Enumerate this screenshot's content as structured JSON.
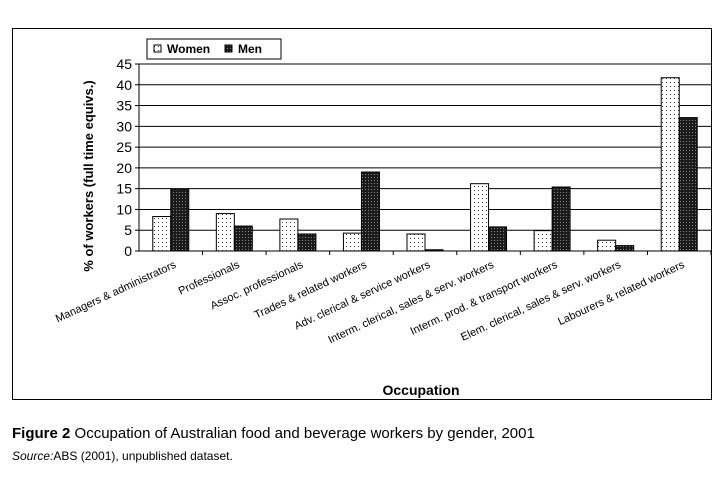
{
  "chart_data": {
    "type": "bar",
    "categories": [
      "Managers & administrators",
      "Professionals",
      "Assoc. professionals",
      "Trades & related workers",
      "Adv. clerical & service workers",
      "Interm. clerical, sales & serv. workers",
      "Interm. prod. & transport workers",
      "Elem. clerical, sales & serv. workers",
      "Labourers & related workers"
    ],
    "series": [
      {
        "name": "Women",
        "values": [
          8.3,
          9.0,
          7.7,
          4.3,
          4.1,
          16.2,
          4.9,
          2.6,
          41.7
        ]
      },
      {
        "name": "Men",
        "values": [
          14.9,
          6.0,
          4.1,
          19.0,
          0.3,
          5.8,
          15.4,
          1.3,
          32.1
        ]
      }
    ],
    "title": "",
    "xlabel": "Occupation",
    "ylabel": "% of workers (full time equivs.)",
    "ylim": [
      0,
      45
    ],
    "yticks": [
      "0",
      "5",
      "10",
      "15",
      "20",
      "25",
      "30",
      "35",
      "40",
      "45"
    ],
    "grid": true,
    "legend_position": "top-left"
  },
  "caption": {
    "label": "Figure 2",
    "text": "Occupation of Australian food and beverage workers by gender, 2001"
  },
  "source": {
    "label": "Source:",
    "text": "ABS (2001), unpublished dataset."
  }
}
